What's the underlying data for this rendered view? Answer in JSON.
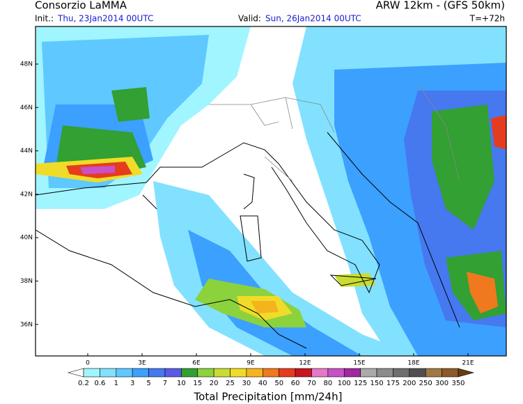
{
  "header": {
    "title": "Consorzio LaMMA",
    "model": "ARW 12km - (GFS 50km)",
    "init_label": "Init.:",
    "init_time": "Thu, 23Jan2014 00UTC",
    "valid_label": "Valid:",
    "valid_time": "Sun, 26Jan2014 00UTC",
    "lead_time": "T=+72h"
  },
  "map": {
    "lat_labels": [
      "48N",
      "46N",
      "44N",
      "42N",
      "40N",
      "38N",
      "36N"
    ],
    "lon_labels": [
      "0",
      "3E",
      "6E",
      "9E",
      "12E",
      "15E",
      "18E",
      "21E"
    ]
  },
  "legend": {
    "title": "Total Precipitation [mm/24h]",
    "levels": [
      "0.2",
      "0.6",
      "1",
      "3",
      "5",
      "7",
      "10",
      "15",
      "20",
      "25",
      "30",
      "40",
      "50",
      "60",
      "70",
      "80",
      "100",
      "125",
      "150",
      "175",
      "200",
      "250",
      "300",
      "350"
    ],
    "colors": [
      "#ffffff",
      "#a0f5ff",
      "#82e1ff",
      "#5fc8ff",
      "#3ca0ff",
      "#4678f0",
      "#5a5ae6",
      "#32a032",
      "#8cd23c",
      "#c8dc32",
      "#f0dc28",
      "#f5b41e",
      "#f0781e",
      "#e63c1e",
      "#c8141e",
      "#e678c8",
      "#c850c8",
      "#a028a0",
      "#aaaaaa",
      "#8c8c8c",
      "#6e6e6e",
      "#505050",
      "#a07846",
      "#8c5a28",
      "#643c14"
    ]
  }
}
